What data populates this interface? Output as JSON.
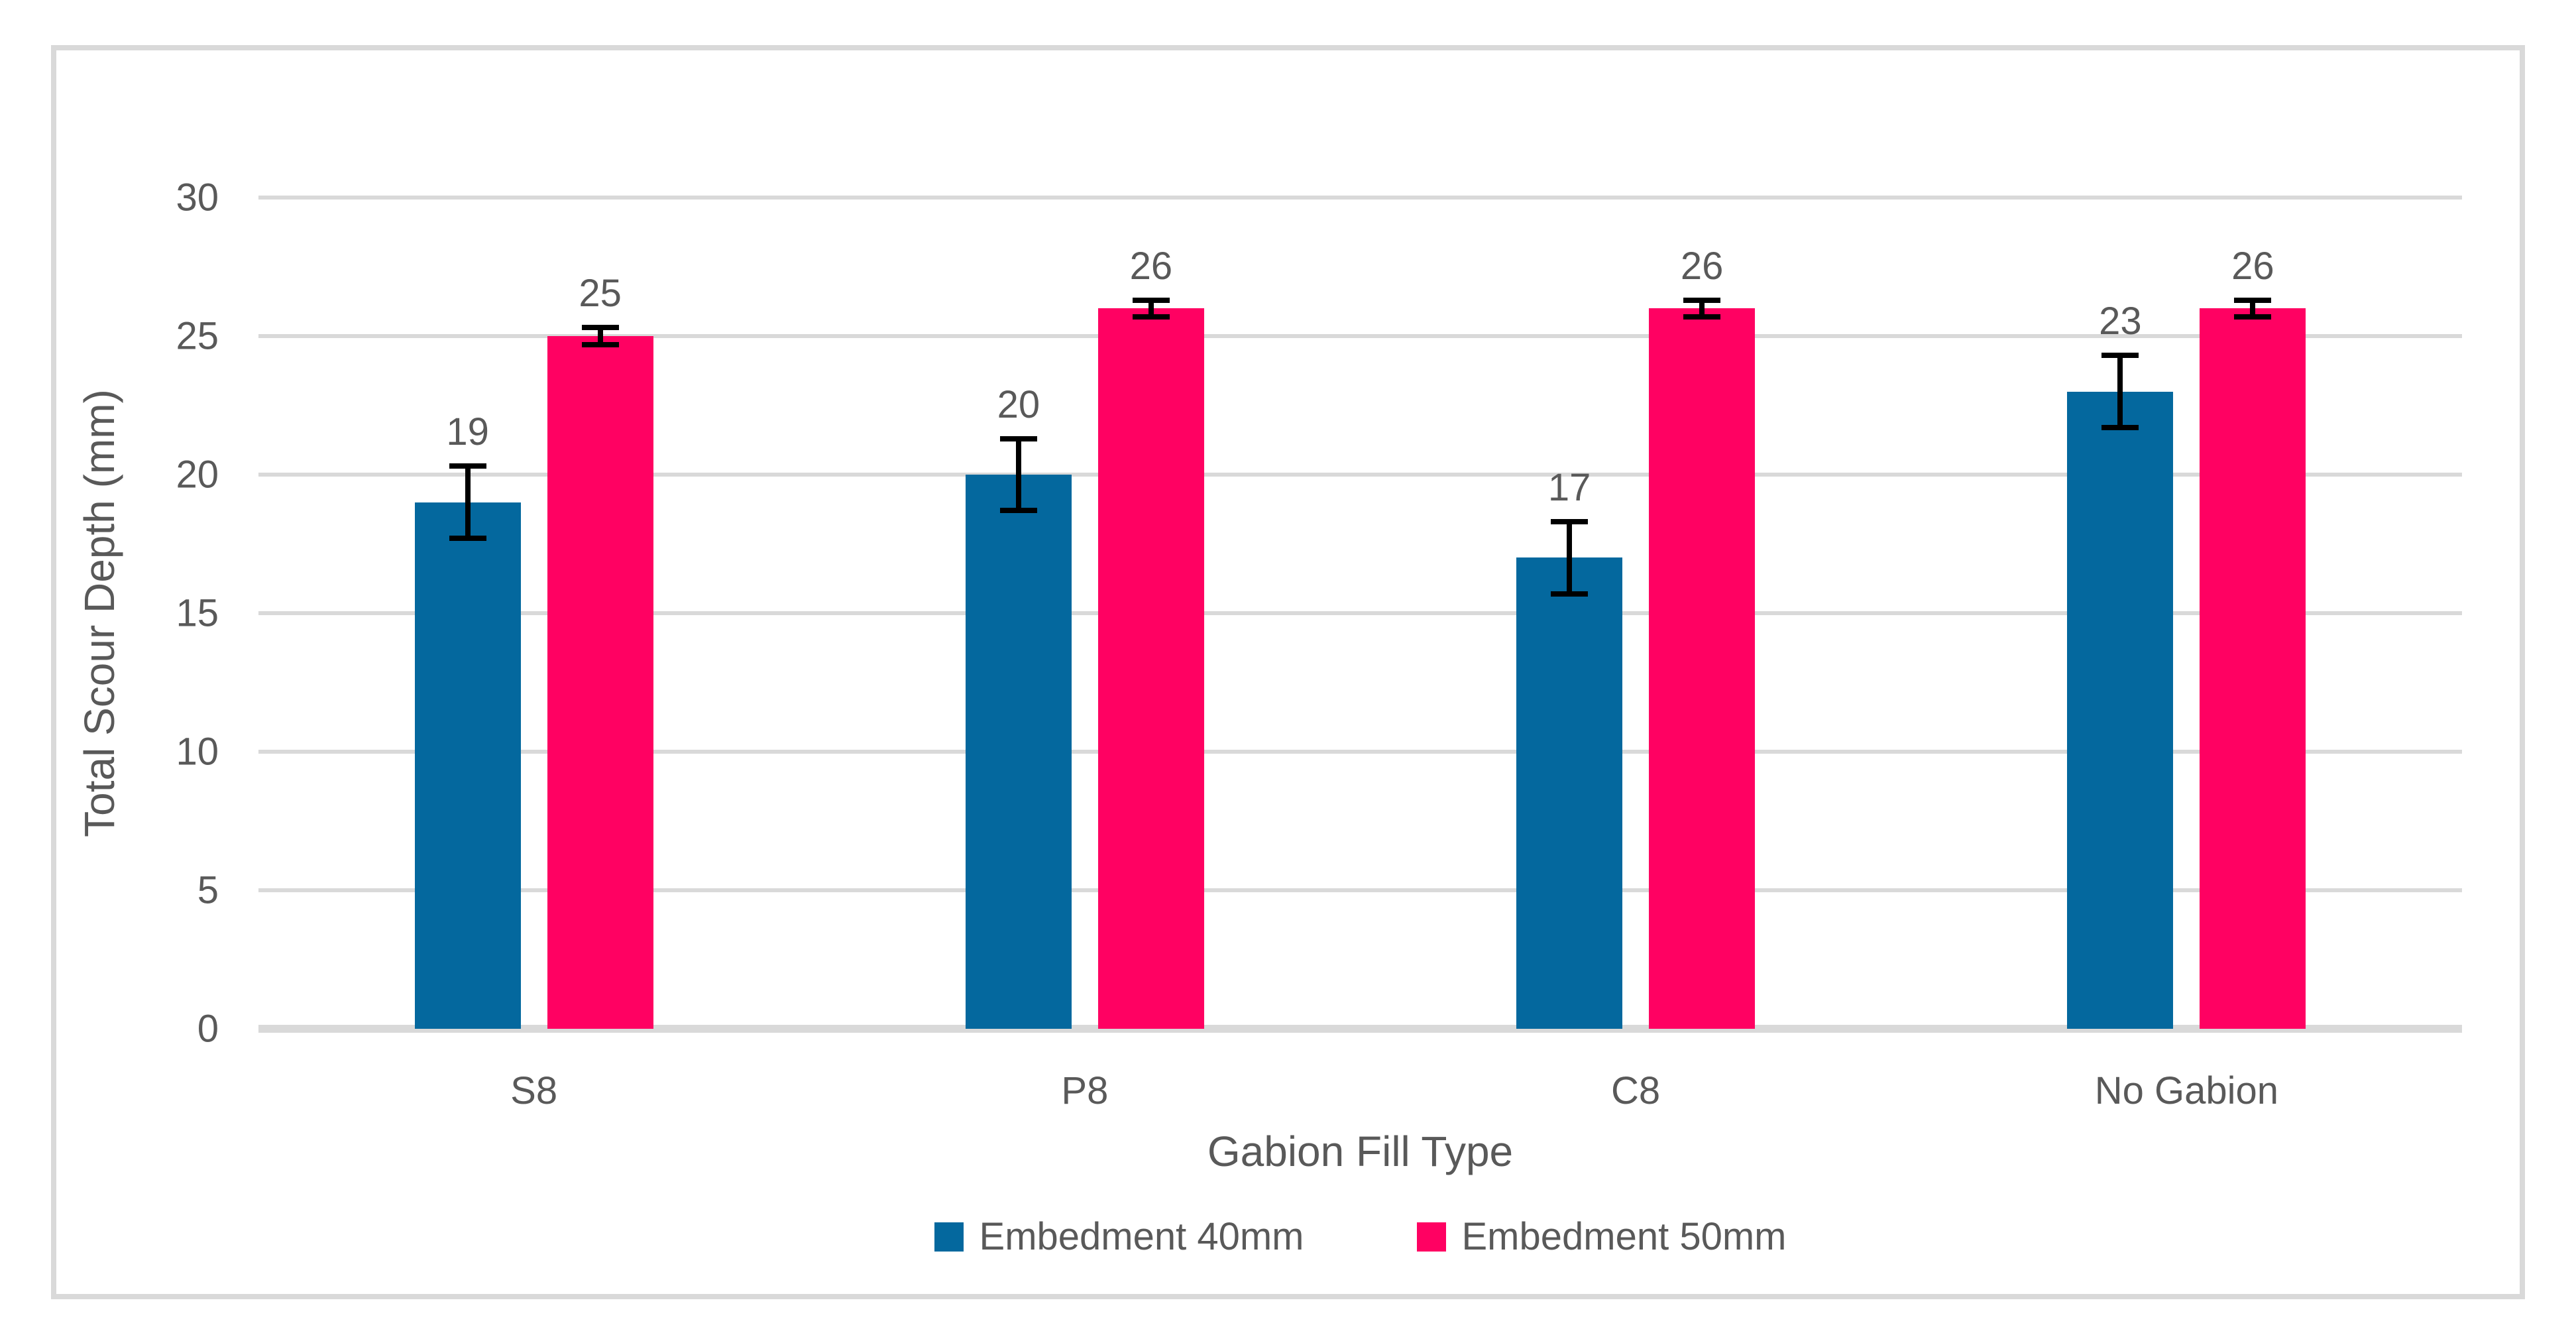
{
  "chart_data": {
    "type": "bar",
    "title": "",
    "categories": [
      "S8",
      "P8",
      "C8",
      "No Gabion"
    ],
    "series": [
      {
        "name": "Embedment 40mm",
        "color": "#04689E",
        "values": [
          19,
          20,
          17,
          23
        ],
        "errors": [
          1.3,
          1.3,
          1.3,
          1.3
        ]
      },
      {
        "name": "Embedment 50mm",
        "color": "#FF0162",
        "values": [
          25,
          26,
          26,
          26
        ],
        "errors": [
          0.3,
          0.3,
          0.3,
          0.3
        ]
      }
    ],
    "xlabel": "Gabion Fill Type",
    "ylabel": "Total Scour Depth (mm)",
    "ylim": [
      0,
      30
    ],
    "yticks": [
      0,
      5,
      10,
      15,
      20,
      25,
      30
    ],
    "ytick_labels": [
      "0",
      "5",
      "10",
      "15",
      "20",
      "25",
      "30"
    ],
    "grid": true,
    "legend_position": "bottom",
    "error_bars": true,
    "data_labels": true
  },
  "colors": {
    "background": "#FFFFFF",
    "frame_border": "#D9D9D9",
    "gridline": "#D9D9D9",
    "axis_line": "#D9D9D9",
    "text": "#595959",
    "error_bar": "#000000",
    "series_40mm": "#04689E",
    "series_50mm": "#FF0162"
  }
}
